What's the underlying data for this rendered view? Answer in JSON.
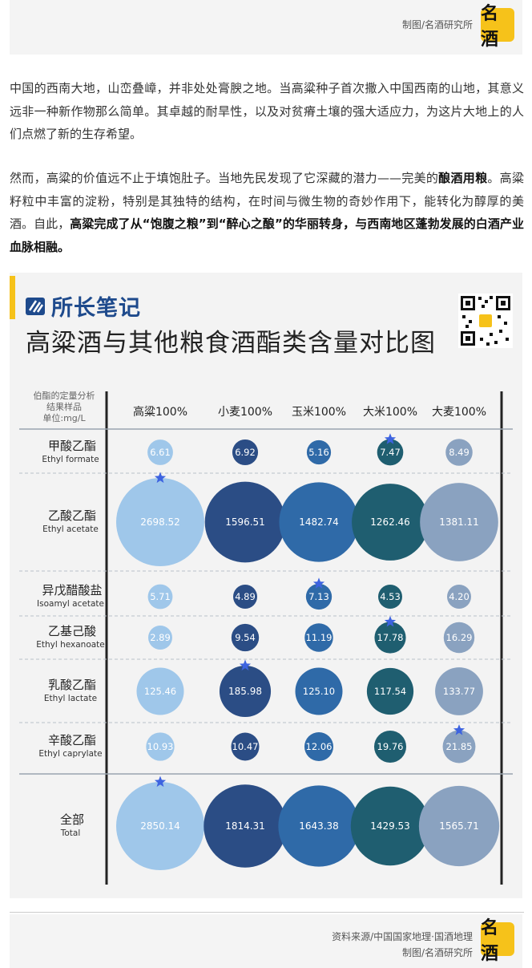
{
  "header": {
    "credit": "制图/名酒研究所",
    "logo_text": "名酒"
  },
  "article": {
    "p1": "中国的西南大地，山峦叠嶂，并非处处膏腴之地。当高粱种子首次撒入中国西南的山地，其意义远非一种新作物那么简单。其卓越的耐旱性，以及对贫瘠土壤的强大适应力，为这片大地上的人们点燃了新的生存希望。",
    "p2_a": "然而，高粱的价值远不止于填饱肚子。当地先民发现了它深藏的潜力——完美的",
    "p2_b": "酿酒用粮",
    "p2_c": "。高粱籽粒中丰富的淀粉，特别是其独特的结构，在时间与微生物的奇妙作用下，能转化为醇厚的美酒。自此，",
    "p2_d": "高粱完成了从“饱腹之粮”到“醉心之酿”的华丽转身，与西南地区蓬勃发展的白酒产业血脉相融。"
  },
  "card": {
    "brand": "所长笔记"
  },
  "footer": {
    "source": "资料来源/中国国家地理·国酒地理",
    "credit": "制图/名酒研究所",
    "logo_text": "名酒"
  },
  "colors": {
    "sorghum": "#9fc7ea",
    "wheat": "#2b4d85",
    "corn": "#2f6aa8",
    "rice": "#1f5e70",
    "barley": "#8aa2c0",
    "star": "#3d63e0"
  },
  "chart_data": {
    "type": "bubble-table",
    "title": "高粱酒与其他粮食酒酯类含量对比图",
    "corner_label": [
      "伯酯的定量分析",
      "结果样品",
      "单位:mg/L"
    ],
    "unit": "mg/L",
    "categories": [
      "高粱100%",
      "小麦100%",
      "玉米100%",
      "大米100%",
      "大麦100%"
    ],
    "rows": [
      {
        "name": "甲酸乙酯",
        "name_en": "Ethyl formate",
        "values": [
          6.61,
          6.92,
          5.16,
          7.47,
          8.49
        ],
        "star_index": 3
      },
      {
        "name": "乙酸乙酯",
        "name_en": "Ethyl acetate",
        "values": [
          2698.52,
          1596.51,
          1482.74,
          1262.46,
          1381.11
        ],
        "star_index": 0
      },
      {
        "name": "异戊醋酸盐",
        "name_en": "Isoamyl acetate",
        "values": [
          5.71,
          4.89,
          7.13,
          4.53,
          4.2
        ],
        "star_index": 2
      },
      {
        "name": "乙基己酸",
        "name_en": "Ethyl hexanoate",
        "values": [
          2.89,
          9.54,
          11.19,
          17.78,
          16.29
        ],
        "star_index": 3
      },
      {
        "name": "乳酸乙酯",
        "name_en": "Ethyl lactate",
        "values": [
          125.46,
          185.98,
          125.1,
          117.54,
          133.77
        ],
        "star_index": 1
      },
      {
        "name": "辛酸乙酯",
        "name_en": "Ethyl caprylate",
        "values": [
          10.93,
          10.47,
          12.06,
          19.76,
          21.85
        ],
        "star_index": 4
      },
      {
        "name": "全部",
        "name_en": "Total",
        "values": [
          2850.14,
          1814.31,
          1643.38,
          1429.53,
          1565.71
        ],
        "star_index": 0
      }
    ],
    "value_labels": [
      [
        "6.61",
        "6.92",
        "5.16",
        "7.47",
        "8.49"
      ],
      [
        "2698.52",
        "1596.51",
        "1482.74",
        "1262.46",
        "1381.11"
      ],
      [
        "5.71",
        "4.89",
        "7.13",
        "4.53",
        "4.20"
      ],
      [
        "2.89",
        "9.54",
        "11.19",
        "17.78",
        "16.29"
      ],
      [
        "125.46",
        "185.98",
        "125.10",
        "117.54",
        "133.77"
      ],
      [
        "10.93",
        "10.47",
        "12.06",
        "19.76",
        "21.85"
      ],
      [
        "2850.14",
        "1814.31",
        "1643.38",
        "1429.53",
        "1565.71"
      ]
    ]
  }
}
